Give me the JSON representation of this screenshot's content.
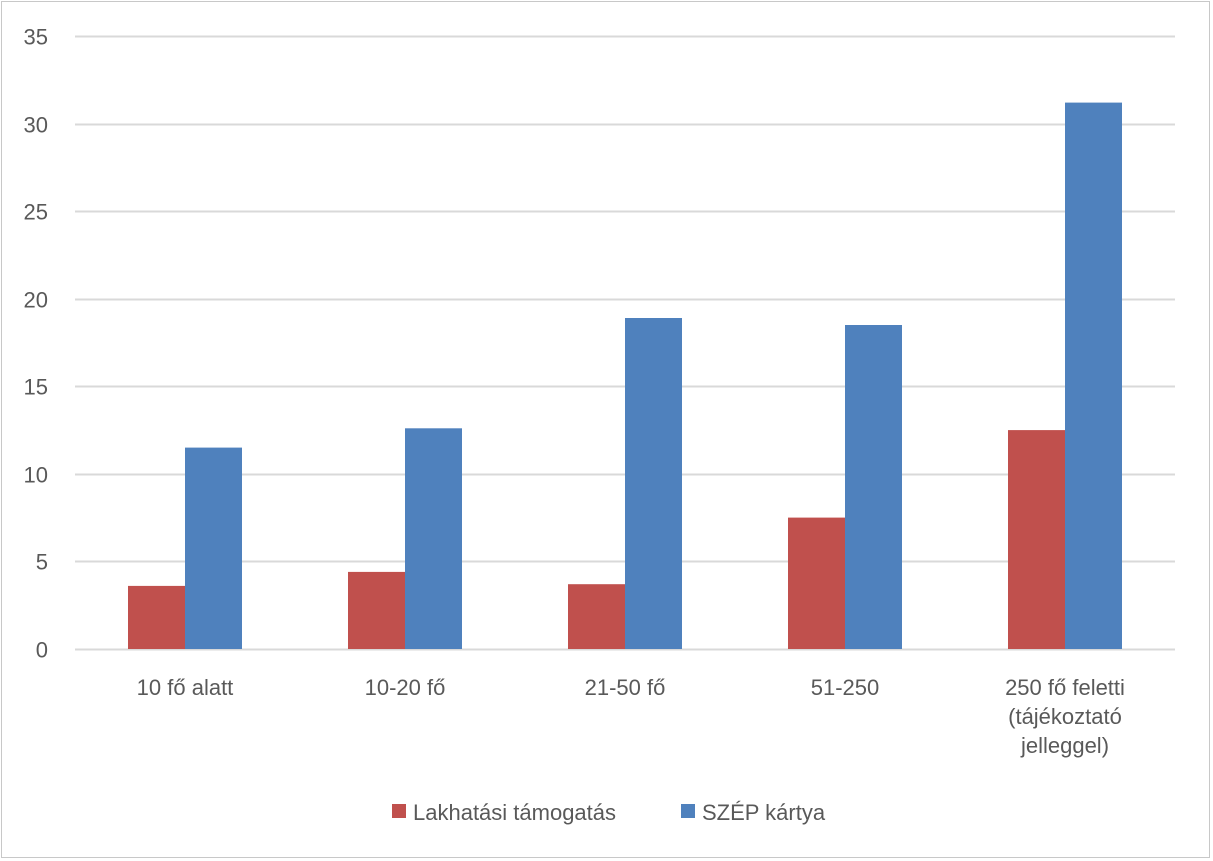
{
  "chart_data": {
    "type": "bar",
    "categories": [
      [
        "10 fő alatt"
      ],
      [
        "10-20 fő"
      ],
      [
        "21-50 fő"
      ],
      [
        "51-250"
      ],
      [
        "250 fő feletti",
        "(tájékoztató",
        "jelleggel)"
      ]
    ],
    "series": [
      {
        "name": "Lakhatási támogatás",
        "color": "#C0504D",
        "values": [
          3.6,
          4.4,
          3.7,
          7.5,
          12.5
        ]
      },
      {
        "name": "SZÉP kártya",
        "color": "#4F81BD",
        "values": [
          11.5,
          12.6,
          18.9,
          18.5,
          31.2
        ]
      }
    ],
    "ylim": [
      0,
      35
    ],
    "yticks": [
      0,
      5,
      10,
      15,
      20,
      25,
      30,
      35
    ],
    "grid": true,
    "legend_position": "bottom",
    "title": "",
    "xlabel": "",
    "ylabel": ""
  }
}
